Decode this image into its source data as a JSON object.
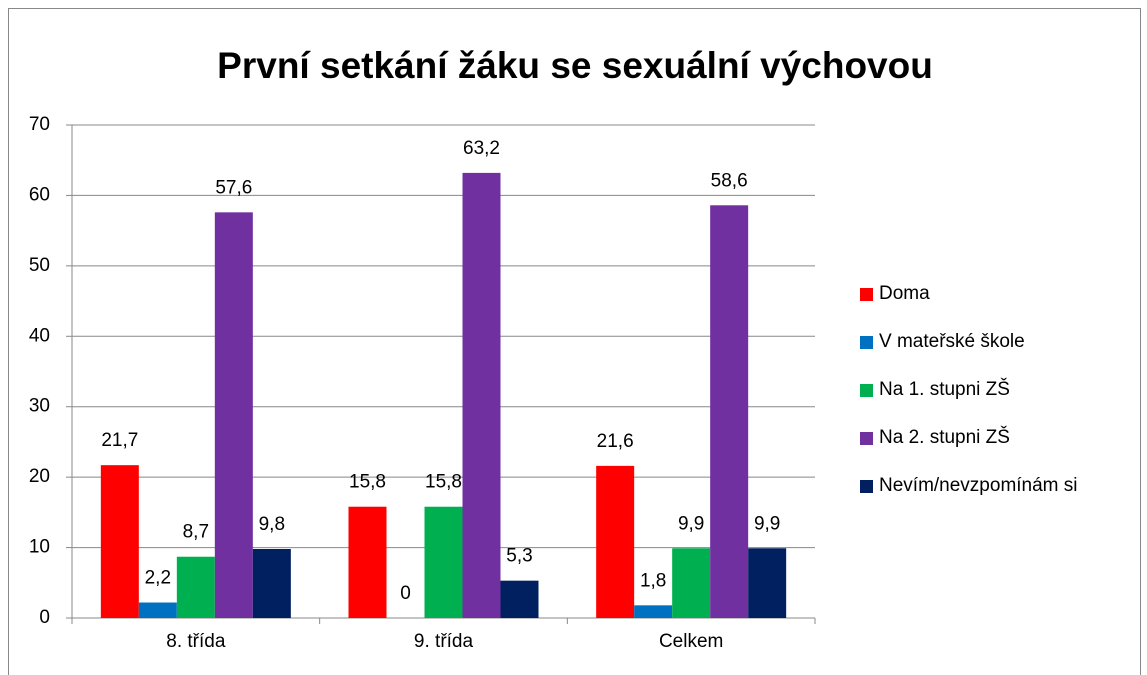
{
  "chart_data": {
    "type": "bar",
    "title": "První setkání žáku se sexuální výchovou",
    "categories": [
      "8. třída",
      "9. třída",
      "Celkem"
    ],
    "series": [
      {
        "name": "Doma",
        "color": "#ff0000",
        "values": [
          21.7,
          15.8,
          21.6
        ],
        "value_labels": [
          "21,7",
          "15,8",
          "21,6"
        ]
      },
      {
        "name": "V mateřské škole",
        "color": "#0070c0",
        "values": [
          2.2,
          0,
          1.8
        ],
        "value_labels": [
          "2,2",
          "0",
          "1,8"
        ]
      },
      {
        "name": "Na 1. stupni ZŠ",
        "color": "#00b050",
        "values": [
          8.7,
          15.8,
          9.9
        ],
        "value_labels": [
          "8,7",
          "15,8",
          "9,9"
        ]
      },
      {
        "name": "Na 2. stupni ZŠ",
        "color": "#7030a0",
        "values": [
          57.6,
          63.2,
          58.6
        ],
        "value_labels": [
          "57,6",
          "63,2",
          "58,6"
        ]
      },
      {
        "name": "Nevím/nevzpomínám si",
        "color": "#002060",
        "values": [
          9.8,
          5.3,
          9.9
        ],
        "value_labels": [
          "9,8",
          "5,3",
          "9,9"
        ]
      }
    ],
    "ylim": [
      0,
      70
    ],
    "yticks": [
      0,
      10,
      20,
      30,
      40,
      50,
      60,
      70
    ],
    "grid": true,
    "legend": "right"
  }
}
